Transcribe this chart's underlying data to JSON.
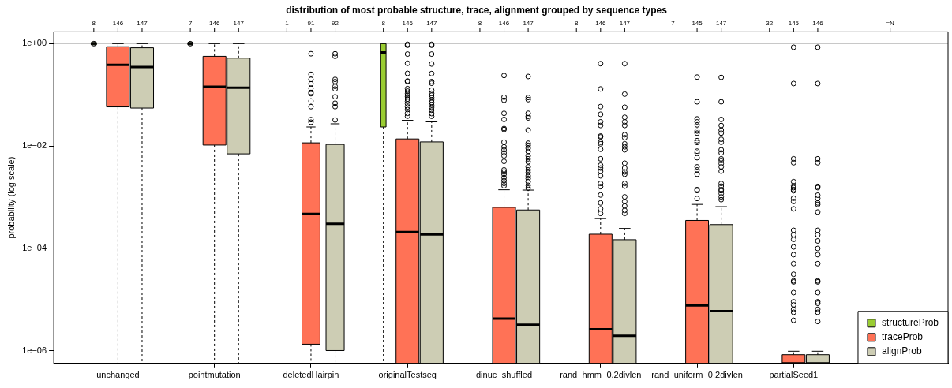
{
  "chart_data": {
    "type": "box",
    "title": "distribution of most probable structure, trace, alignment grouped by sequence types",
    "ylabel": "probability (log scale)",
    "log": "y",
    "legend": "bottom right",
    "marker": "circle",
    "categories": [
      "unchanged",
      "pointmutation",
      "deletedHairpin",
      "originalTestseq",
      "dinuc−shuffled",
      "rand−hmm−0.2divlen",
      "rand−uniform−0.2divlen",
      "partialSeed1"
    ],
    "ylim": [
      5.6e-07,
      1.7
    ],
    "yticks": [
      {
        "value": 1e-06,
        "label": "1e−06"
      },
      {
        "value": 0.0001,
        "label": "1e−04"
      },
      {
        "value": 0.01,
        "label": "1e−02"
      },
      {
        "value": 1,
        "label": "1e+00"
      }
    ],
    "annotations": [
      "=N"
    ],
    "ref_lines": [
      {
        "axis": "y",
        "value": 1,
        "color": "#bebebe"
      }
    ],
    "series": [
      {
        "name": "structureProb",
        "color": "#9acd32",
        "value_labels": [
          "8",
          "7",
          "1",
          "8",
          "8",
          "8",
          "7",
          "32"
        ],
        "boxes": [
          {
            "low": 1,
            "q1": 1,
            "median": 1,
            "q3": 1,
            "high": 1,
            "outliers": [
              1
            ]
          },
          {
            "low": 1,
            "q1": 1,
            "median": 1,
            "q3": 1,
            "high": 1,
            "outliers": [
              1
            ]
          },
          null,
          {
            "low": 5.6e-07,
            "q1": 0.0235,
            "median": 0.671,
            "q3": 1,
            "high": 1
          },
          null,
          null,
          null,
          null
        ]
      },
      {
        "name": "traceProb",
        "color": "#ff7256",
        "value_labels": [
          "146",
          "146",
          "91",
          "146",
          "146",
          "146",
          "145",
          "145"
        ],
        "boxes": [
          {
            "low": 5.6e-07,
            "q1": 0.058,
            "median": 0.385,
            "q3": 0.87,
            "high": 1
          },
          {
            "low": 5.6e-07,
            "q1": 0.0104,
            "median": 0.144,
            "q3": 0.565,
            "high": 1
          },
          {
            "low": 5.6e-07,
            "q1": 1.33e-06,
            "median": 0.00047,
            "q3": 0.0115,
            "high": 0.0235,
            "outliers": [
              0.634,
              0.251,
              0.2,
              0.164,
              0.134,
              0.111,
              0.105,
              0.0757,
              0.0586,
              0.0327,
              0.0291
            ]
          },
          {
            "low": 5.6e-07,
            "q1": 5.6e-07,
            "median": 0.000207,
            "q3": 0.0137,
            "high": 0.0317,
            "outliers": [
              0.97,
              0.93,
              0.625,
              0.413,
              0.262,
              0.186,
              0.181,
              0.132,
              0.118,
              0.105,
              0.098,
              0.0912,
              0.0824,
              0.0746,
              0.0667,
              0.0578,
              0.0515,
              0.0434,
              0.0382
            ]
          },
          {
            "low": 5.6e-07,
            "q1": 5.6e-07,
            "median": 4.2e-06,
            "q3": 0.00063,
            "high": 0.00139,
            "outliers": [
              0.238,
              0.0899,
              0.0782,
              0.0434,
              0.033,
              0.0219,
              0.021,
              0.0119,
              0.0096,
              0.0084,
              0.0073,
              0.0064,
              0.005,
              0.0034,
              0.0031,
              0.0028,
              0.0024,
              0.0021,
              0.00185,
              0.00166
            ]
          },
          {
            "low": 5.6e-07,
            "q1": 5.6e-07,
            "median": 2.6e-06,
            "q3": 0.000188,
            "high": 0.00038,
            "outliers": [
              0.406,
              0.13,
              0.0588,
              0.0416,
              0.0296,
              0.0251,
              0.0156,
              0.015,
              0.0118,
              0.011,
              0.0086,
              0.0056,
              0.0042,
              0.0037,
              0.0032,
              0.0026,
              0.00185,
              0.0016,
              0.0011,
              0.00077,
              0.00059,
              0.00048
            ]
          },
          {
            "low": 5.6e-07,
            "q1": 5.6e-07,
            "median": 7.6e-06,
            "q3": 0.00035,
            "high": 0.00072,
            "outliers": [
              0.222,
              0.073,
              0.0338,
              0.0296,
              0.0258,
              0.0196,
              0.0178,
              0.0127,
              0.0117,
              0.0079,
              0.0073,
              0.0059,
              0.0039,
              0.0034,
              0.0028,
              0.0014,
              0.00134,
              0.00094
            ]
          },
          {
            "low": 5.6e-07,
            "q1": 5.6e-07,
            "median": 5.6e-07,
            "q3": 8.3e-07,
            "high": 9.7e-07,
            "outliers": [
              0.85,
              0.166,
              0.0056,
              0.0047,
              0.002,
              0.00166,
              0.0014,
              0.00153,
              0.00133,
              0.00095,
              0.00082,
              0.00059,
              0.000224,
              0.000183,
              0.000149,
              0.000106,
              7.5e-05,
              5e-05,
              3.1e-05,
              2.3e-05,
              2.2e-05,
              1.36e-05,
              9e-06,
              7.8e-06,
              6.4e-06,
              5.6e-06,
              3.9e-06
            ]
          }
        ]
      },
      {
        "name": "alignProb",
        "color": "#cdcdb4",
        "value_labels": [
          "147",
          "147",
          "92",
          "147",
          "147",
          "147",
          "147",
          "146"
        ],
        "boxes": [
          {
            "low": 5.6e-07,
            "q1": 0.055,
            "median": 0.35,
            "q3": 0.83,
            "high": 1
          },
          {
            "low": 5.6e-07,
            "q1": 0.007,
            "median": 0.138,
            "q3": 0.52,
            "high": 1
          },
          {
            "low": 5.6e-07,
            "q1": 1e-06,
            "median": 0.0003,
            "q3": 0.0107,
            "high": 0.0271,
            "outliers": [
              0.634,
              0.565,
              0.2,
              0.181,
              0.146,
              0.13,
              0.0912,
              0.0686,
              0.0586,
              0.0322
            ]
          },
          {
            "low": 5.6e-07,
            "q1": 5.6e-07,
            "median": 0.000187,
            "q3": 0.012,
            "high": 0.0296,
            "outliers": [
              0.97,
              0.93,
              0.625,
              0.4,
              0.26,
              0.181,
              0.168,
              0.123,
              0.107,
              0.098,
              0.088,
              0.079,
              0.071,
              0.063,
              0.057,
              0.05,
              0.043,
              0.038
            ]
          },
          {
            "low": 5.6e-07,
            "q1": 5.6e-07,
            "median": 3.2e-06,
            "q3": 0.00056,
            "high": 0.00137,
            "outliers": [
              0.228,
              0.0886,
              0.0805,
              0.0434,
              0.0379,
              0.0353,
              0.0204,
              0.0113,
              0.0103,
              0.009,
              0.0078,
              0.0064,
              0.0056,
              0.0049,
              0.0039,
              0.0034,
              0.003,
              0.0026,
              0.0023,
              0.002,
              0.0017,
              0.0015
            ]
          },
          {
            "low": 5.6e-07,
            "q1": 5.6e-07,
            "median": 1.95e-06,
            "q3": 0.000147,
            "high": 0.000244,
            "outliers": [
              0.406,
              0.103,
              0.0572,
              0.0363,
              0.0296,
              0.0251,
              0.0166,
              0.0145,
              0.011,
              0.0096,
              0.0084,
              0.0046,
              0.0037,
              0.0031,
              0.0028,
              0.00185,
              0.00164,
              0.00101,
              0.00082,
              0.00067,
              0.00055,
              0.00048
            ]
          },
          {
            "low": 5.6e-07,
            "q1": 5.6e-07,
            "median": 5.9e-06,
            "q3": 0.00029,
            "high": 0.00065,
            "outliers": [
              0.219,
              0.073,
              0.033,
              0.0251,
              0.0204,
              0.0178,
              0.0135,
              0.0118,
              0.0084,
              0.0073,
              0.0056,
              0.0052,
              0.0045,
              0.0039,
              0.0032,
              0.00185,
              0.0014,
              0.00164,
              0.00133,
              0.00117,
              0.00101,
              0.00089
            ]
          },
          {
            "low": 5.6e-07,
            "q1": 5.6e-07,
            "median": 5.6e-07,
            "q3": 8.3e-07,
            "high": 9.7e-07,
            "outliers": [
              0.85,
              0.166,
              0.0056,
              0.0047,
              0.00162,
              0.00153,
              0.00109,
              0.00095,
              0.00077,
              0.00072,
              0.00051,
              0.000224,
              0.000183,
              0.000139,
              9.9e-05,
              7.5e-05,
              5e-05,
              2.3e-05,
              2.2e-05,
              1.36e-05,
              9e-06,
              8.4e-06,
              6.4e-06,
              5.6e-06,
              3.7e-06
            ]
          }
        ]
      }
    ]
  }
}
